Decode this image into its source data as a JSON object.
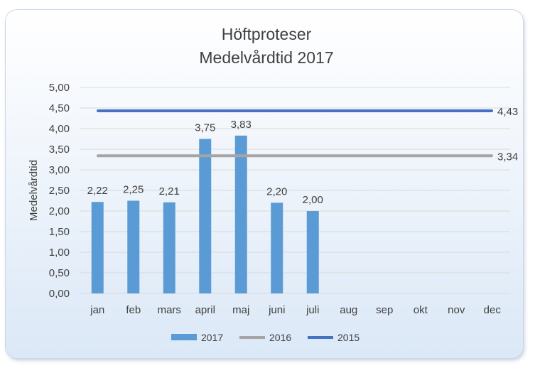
{
  "chart_data": {
    "type": "bar",
    "title": [
      "Höftproteser",
      "Medelvårdtid 2017"
    ],
    "xlabel": "",
    "ylabel": "Medelvårdtid",
    "ylim": [
      0,
      5
    ],
    "ytick_values": [
      0,
      0.5,
      1,
      1.5,
      2,
      2.5,
      3,
      3.5,
      4,
      4.5,
      5
    ],
    "ytick_labels": [
      "0,00",
      "0,50",
      "1,00",
      "1,50",
      "2,00",
      "2,50",
      "3,00",
      "3,50",
      "4,00",
      "4,50",
      "5,00"
    ],
    "categories": [
      "jan",
      "feb",
      "mars",
      "april",
      "maj",
      "juni",
      "juli",
      "aug",
      "sep",
      "okt",
      "nov",
      "dec"
    ],
    "grid": true,
    "series": [
      {
        "name": "2017",
        "kind": "bar",
        "color": "#5b9bd5",
        "values": [
          2.22,
          2.25,
          2.21,
          3.75,
          3.83,
          2.2,
          2.0,
          null,
          null,
          null,
          null,
          null
        ],
        "labels": [
          "2,22",
          "2,25",
          "2,21",
          "3,75",
          "3,83",
          "2,20",
          "2,00",
          "",
          "",
          "",
          "",
          ""
        ]
      },
      {
        "name": "2016",
        "kind": "line",
        "color": "#a5a5a5",
        "value": 3.34,
        "label": "3,34"
      },
      {
        "name": "2015",
        "kind": "line",
        "color": "#4472c4",
        "value": 4.43,
        "label": "4,43"
      }
    ],
    "legend_position": "bottom"
  }
}
